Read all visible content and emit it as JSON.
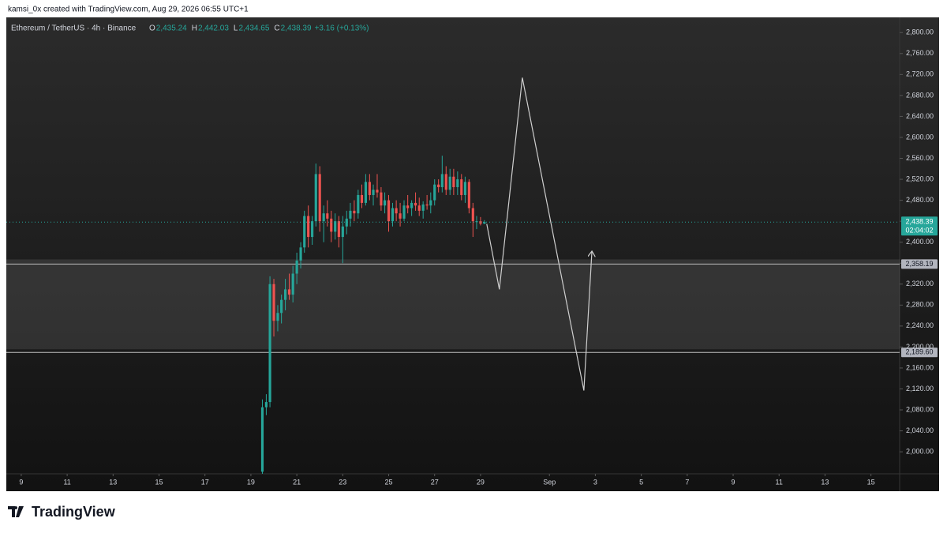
{
  "header": {
    "credit": "kamsi_0x created with TradingView.com, Aug 29, 2026 06:55 UTC+1"
  },
  "chart_data": {
    "type": "candlestick",
    "symbol": "Ethereum / TetherUS · 4h · Binance",
    "ohlc": [
      {
        "key": "O",
        "value": "2,435.24"
      },
      {
        "key": "H",
        "value": "2,442.03"
      },
      {
        "key": "L",
        "value": "2,434.65"
      },
      {
        "key": "C",
        "value": "2,438.39"
      }
    ],
    "change": "+3.16 (+0.13%)",
    "up_color": "#26a69a",
    "down_color": "#ef5350",
    "xlim": [
      8.35,
      47.25
    ],
    "xticks": [
      9,
      11,
      13,
      15,
      17,
      19,
      21,
      23,
      25,
      27,
      29,
      {
        "value": 32,
        "label": "Sep"
      },
      {
        "value": 34,
        "label": "3"
      },
      {
        "value": 36,
        "label": "5"
      },
      {
        "value": 38,
        "label": "7"
      },
      {
        "value": 40,
        "label": "9"
      },
      {
        "value": 42,
        "label": "11"
      },
      {
        "value": 44,
        "label": "13"
      },
      {
        "value": 46,
        "label": "15"
      }
    ],
    "ylim": [
      1958,
      2829
    ],
    "yticks": [
      {
        "value": 2000,
        "label": "2,000.00"
      },
      {
        "value": 2040,
        "label": "2,040.00"
      },
      {
        "value": 2080,
        "label": "2,080.00"
      },
      {
        "value": 2120,
        "label": "2,120.00"
      },
      {
        "value": 2160,
        "label": "2,160.00"
      },
      {
        "value": 2200,
        "label": "2,200.00"
      },
      {
        "value": 2240,
        "label": "2,240.00"
      },
      {
        "value": 2280,
        "label": "2,280.00"
      },
      {
        "value": 2320,
        "label": "2,320.00"
      },
      {
        "value": 2360,
        "label": "2,360.00"
      },
      {
        "value": 2400,
        "label": "2,400.00"
      },
      {
        "value": 2440,
        "label": "2,440.00"
      },
      {
        "value": 2480,
        "label": "2,480.00"
      },
      {
        "value": 2520,
        "label": "2,520.00"
      },
      {
        "value": 2560,
        "label": "2,560.00"
      },
      {
        "value": 2600,
        "label": "2,600.00"
      },
      {
        "value": 2640,
        "label": "2,640.00"
      },
      {
        "value": 2680,
        "label": "2,680.00"
      },
      {
        "value": 2720,
        "label": "2,720.00"
      },
      {
        "value": 2760,
        "label": "2,760.00"
      },
      {
        "value": 2800,
        "label": "2,800.00"
      }
    ],
    "x": [
      19.5,
      19.67,
      19.83,
      20,
      20.17,
      20.33,
      20.5,
      20.67,
      20.83,
      21,
      21.17,
      21.33,
      21.5,
      21.67,
      21.83,
      22,
      22.17,
      22.33,
      22.5,
      22.67,
      22.83,
      23,
      23.17,
      23.33,
      23.5,
      23.67,
      23.83,
      24,
      24.17,
      24.33,
      24.5,
      24.67,
      24.83,
      25,
      25.17,
      25.33,
      25.5,
      25.67,
      25.83,
      26,
      26.17,
      26.33,
      26.5,
      26.67,
      26.83,
      27,
      27.17,
      27.33,
      27.5,
      27.67,
      27.83,
      28,
      28.17,
      28.33,
      28.5,
      28.67,
      28.83,
      29,
      29.17
    ],
    "open": [
      1962,
      2085,
      2095,
      2320,
      2250,
      2265,
      2290,
      2310,
      2300,
      2340,
      2365,
      2390,
      2450,
      2410,
      2440,
      2530,
      2440,
      2455,
      2445,
      2420,
      2440,
      2410,
      2430,
      2445,
      2460,
      2455,
      2490,
      2475,
      2515,
      2490,
      2500,
      2495,
      2470,
      2480,
      2440,
      2465,
      2455,
      2445,
      2470,
      2465,
      2475,
      2470,
      2460,
      2472,
      2470,
      2480,
      2510,
      2505,
      2530,
      2500,
      2525,
      2505,
      2520,
      2490,
      2515,
      2465,
      2440,
      2440,
      2435.24
    ],
    "high": [
      2100,
      2110,
      2335,
      2330,
      2280,
      2300,
      2330,
      2340,
      2355,
      2380,
      2400,
      2460,
      2470,
      2450,
      2550,
      2545,
      2470,
      2480,
      2460,
      2455,
      2450,
      2450,
      2460,
      2475,
      2480,
      2500,
      2510,
      2530,
      2530,
      2510,
      2530,
      2505,
      2495,
      2490,
      2475,
      2480,
      2475,
      2480,
      2490,
      2480,
      2495,
      2485,
      2478,
      2490,
      2495,
      2520,
      2520,
      2565,
      2545,
      2540,
      2540,
      2535,
      2530,
      2525,
      2520,
      2475,
      2450,
      2448,
      2442.03
    ],
    "low": [
      1958,
      2070,
      2085,
      2220,
      2230,
      2245,
      2270,
      2290,
      2285,
      2320,
      2350,
      2380,
      2390,
      2395,
      2430,
      2420,
      2400,
      2430,
      2400,
      2405,
      2390,
      2360,
      2415,
      2430,
      2440,
      2445,
      2465,
      2470,
      2480,
      2470,
      2485,
      2460,
      2455,
      2420,
      2430,
      2440,
      2430,
      2440,
      2455,
      2450,
      2460,
      2450,
      2445,
      2462,
      2455,
      2470,
      2495,
      2495,
      2490,
      2490,
      2490,
      2490,
      2480,
      2475,
      2455,
      2410,
      2425,
      2432,
      2434.65
    ],
    "close": [
      2085,
      2095,
      2320,
      2250,
      2265,
      2290,
      2310,
      2300,
      2340,
      2365,
      2390,
      2450,
      2410,
      2440,
      2530,
      2440,
      2455,
      2445,
      2420,
      2440,
      2410,
      2430,
      2445,
      2460,
      2455,
      2490,
      2475,
      2515,
      2490,
      2500,
      2495,
      2470,
      2480,
      2440,
      2465,
      2455,
      2445,
      2470,
      2465,
      2475,
      2470,
      2460,
      2472,
      2470,
      2480,
      2510,
      2505,
      2530,
      2500,
      2525,
      2505,
      2520,
      2490,
      2515,
      2465,
      2440,
      2440,
      2435.23,
      2438.39
    ],
    "last_price": {
      "value": 2438.39,
      "label": "2,438.39"
    },
    "countdown": "02:04:02",
    "levels": [
      {
        "value": 2358.19,
        "label": "2,358.19"
      },
      {
        "value": 2189.6,
        "label": "2,189.60"
      }
    ],
    "projection": {
      "x": [
        29.27,
        29.82,
        30.82,
        33.5,
        33.85
      ],
      "y": [
        2435,
        2310,
        2714,
        2117,
        2383
      ]
    }
  },
  "footer": {
    "brand": "TradingView"
  }
}
